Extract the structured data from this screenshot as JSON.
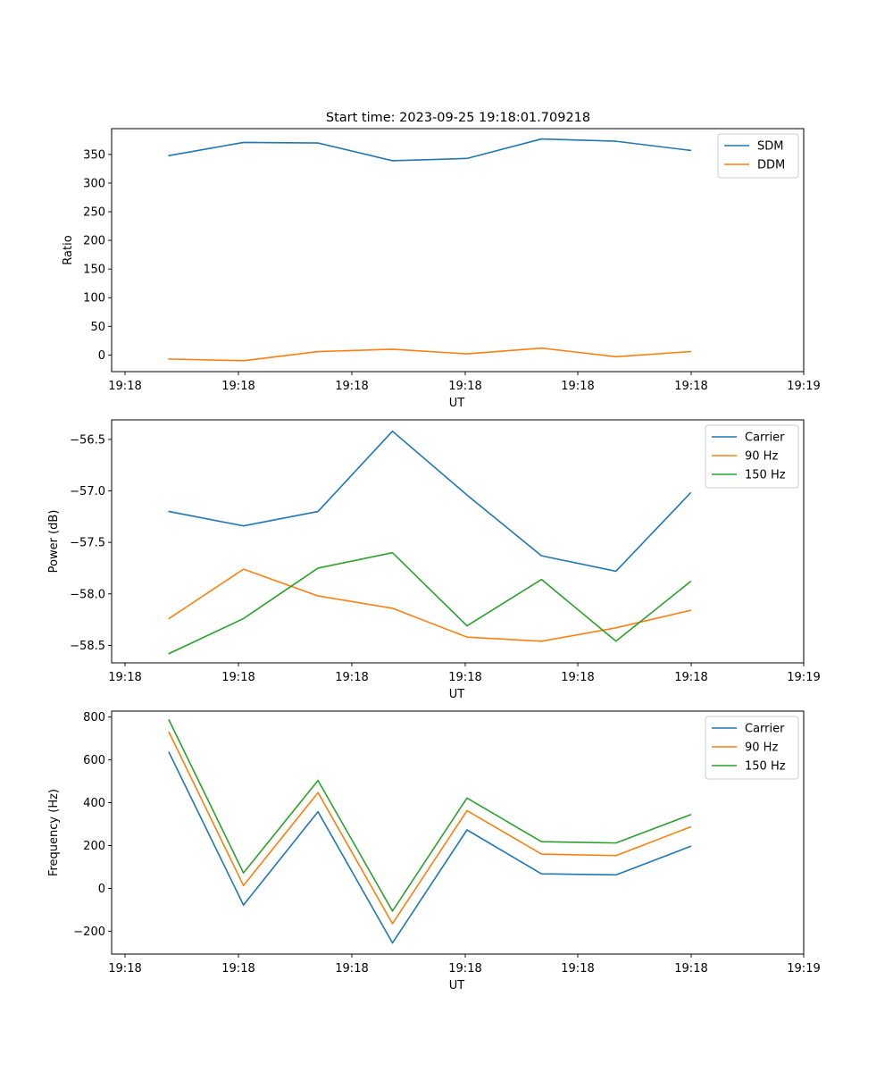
{
  "figure_title": "Start time: 2023-09-25 19:18:01.709218",
  "colors": {
    "blue": "#1f77b4",
    "orange": "#ff7f0e",
    "green": "#2ca02c"
  },
  "chart_data": [
    {
      "type": "line",
      "title": "Start time: 2023-09-25 19:18:01.709218",
      "xlabel": "UT",
      "ylabel": "Ratio",
      "x_tick_labels": [
        "19:18",
        "19:18",
        "19:18",
        "19:18",
        "19:18",
        "19:18",
        "19:19"
      ],
      "x_index_range": [
        -0.77,
        8.52
      ],
      "ylim": [
        -29,
        395
      ],
      "y_ticks": [
        0,
        50,
        100,
        150,
        200,
        250,
        300,
        350
      ],
      "legend_location": "upper right",
      "series": [
        {
          "name": "SDM",
          "color": "#1f77b4",
          "values": [
            348,
            371,
            370,
            339,
            343,
            377,
            373,
            357
          ]
        },
        {
          "name": "DDM",
          "color": "#ff7f0e",
          "values": [
            -7,
            -10,
            6,
            10,
            2,
            12,
            -3,
            6
          ]
        }
      ]
    },
    {
      "type": "line",
      "title": "",
      "xlabel": "UT",
      "ylabel": "Power (dB)",
      "x_tick_labels": [
        "19:18",
        "19:18",
        "19:18",
        "19:18",
        "19:18",
        "19:18",
        "19:19"
      ],
      "x_index_range": [
        -0.77,
        8.52
      ],
      "ylim": [
        -58.67,
        -56.31
      ],
      "y_ticks": [
        -58.5,
        -58.0,
        -57.5,
        -57.0,
        -56.5
      ],
      "y_tick_labels": [
        "−58.5",
        "−58.0",
        "−57.5",
        "−57.0",
        "−56.5"
      ],
      "legend_location": "upper right",
      "series": [
        {
          "name": "Carrier",
          "color": "#1f77b4",
          "values": [
            -57.2,
            -57.34,
            -57.2,
            -56.42,
            -57.04,
            -57.63,
            -57.78,
            -57.02
          ]
        },
        {
          "name": "90 Hz",
          "color": "#ff7f0e",
          "values": [
            -58.24,
            -57.76,
            -58.02,
            -58.14,
            -58.42,
            -58.46,
            -58.33,
            -58.16
          ]
        },
        {
          "name": "150 Hz",
          "color": "#2ca02c",
          "values": [
            -58.58,
            -58.24,
            -57.75,
            -57.6,
            -58.31,
            -57.86,
            -58.46,
            -57.88
          ]
        }
      ]
    },
    {
      "type": "line",
      "title": "",
      "xlabel": "UT",
      "ylabel": "Frequency (Hz)",
      "x_tick_labels": [
        "19:18",
        "19:18",
        "19:18",
        "19:18",
        "19:18",
        "19:18",
        "19:19"
      ],
      "x_index_range": [
        -0.77,
        8.52
      ],
      "ylim": [
        -307,
        828
      ],
      "y_ticks": [
        -200,
        0,
        200,
        400,
        600,
        800
      ],
      "y_tick_labels": [
        "−200",
        "0",
        "200",
        "400",
        "600",
        "800"
      ],
      "legend_location": "upper right",
      "series": [
        {
          "name": "Carrier",
          "color": "#1f77b4",
          "values": [
            635,
            -78,
            358,
            -255,
            273,
            68,
            63,
            196
          ]
        },
        {
          "name": "90 Hz",
          "color": "#ff7f0e",
          "values": [
            729,
            13,
            447,
            -165,
            363,
            160,
            153,
            287
          ]
        },
        {
          "name": "150 Hz",
          "color": "#2ca02c",
          "values": [
            786,
            72,
            504,
            -106,
            422,
            218,
            212,
            344
          ]
        }
      ]
    }
  ]
}
